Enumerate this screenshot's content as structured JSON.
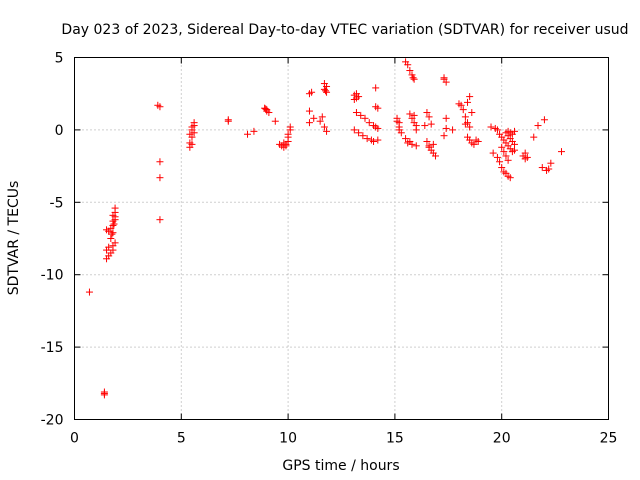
{
  "chart_data": {
    "type": "scatter",
    "title": "Day 023 of 2023, Sidereal Day-to-day VTEC variation (SDTVAR) for receiver usud",
    "xlabel": "GPS time / hours",
    "ylabel": "SDTVAR / TECUs",
    "xlim": [
      0,
      25
    ],
    "ylim": [
      -20,
      5
    ],
    "xticks": [
      0,
      5,
      10,
      15,
      20,
      25
    ],
    "yticks": [
      5,
      0,
      -5,
      -10,
      -15,
      -20
    ],
    "xtick_labels": [
      "0",
      "5",
      "10",
      "15",
      "20",
      "25"
    ],
    "ytick_labels": [
      "5",
      "0",
      "-5",
      "-10",
      "-15",
      "-20"
    ],
    "grid": true,
    "marker": "+",
    "color": "#ff0000",
    "series": [
      {
        "name": "SDTVAR",
        "points": [
          [
            0.7,
            -11.2
          ],
          [
            1.4,
            -18.1
          ],
          [
            1.4,
            -18.2
          ],
          [
            1.4,
            -18.3
          ],
          [
            1.5,
            -6.9
          ],
          [
            1.5,
            -8.3
          ],
          [
            1.5,
            -8.9
          ],
          [
            1.6,
            -8.7
          ],
          [
            1.6,
            -7.0
          ],
          [
            1.6,
            -8.1
          ],
          [
            1.7,
            -6.8
          ],
          [
            1.7,
            -7.5
          ],
          [
            1.7,
            -8.5
          ],
          [
            1.8,
            -5.9
          ],
          [
            1.8,
            -6.3
          ],
          [
            1.8,
            -6.6
          ],
          [
            1.8,
            -7.1
          ],
          [
            1.8,
            -8.0
          ],
          [
            1.8,
            -8.3
          ],
          [
            1.9,
            -5.4
          ],
          [
            1.9,
            -5.7
          ],
          [
            1.9,
            -6.0
          ],
          [
            1.9,
            -6.2
          ],
          [
            1.9,
            -7.8
          ],
          [
            1.85,
            -6.5
          ],
          [
            1.75,
            -7.2
          ],
          [
            3.9,
            1.7
          ],
          [
            4.0,
            1.6
          ],
          [
            4.0,
            -2.2
          ],
          [
            4.0,
            -3.3
          ],
          [
            4.0,
            -6.2
          ],
          [
            5.4,
            -0.9
          ],
          [
            5.4,
            -1.2
          ],
          [
            5.4,
            -0.3
          ],
          [
            5.5,
            -1.0
          ],
          [
            5.5,
            0.0
          ],
          [
            5.5,
            0.2
          ],
          [
            5.6,
            0.5
          ],
          [
            5.6,
            -0.2
          ],
          [
            5.5,
            -0.5
          ],
          [
            5.6,
            0.3
          ],
          [
            7.2,
            0.7
          ],
          [
            7.2,
            0.6
          ],
          [
            8.1,
            -0.3
          ],
          [
            8.4,
            -0.1
          ],
          [
            8.9,
            1.5
          ],
          [
            9.0,
            1.4
          ],
          [
            9.1,
            1.2
          ],
          [
            9.0,
            1.3
          ],
          [
            8.95,
            1.45
          ],
          [
            9.4,
            0.6
          ],
          [
            9.6,
            -1.0
          ],
          [
            9.7,
            -1.1
          ],
          [
            9.8,
            -1.2
          ],
          [
            9.9,
            -1.0
          ],
          [
            10.0,
            -0.8
          ],
          [
            10.0,
            -0.3
          ],
          [
            10.1,
            0.0
          ],
          [
            10.1,
            0.2
          ],
          [
            9.8,
            -0.9
          ],
          [
            9.9,
            -1.1
          ],
          [
            10.0,
            -0.5
          ],
          [
            11.0,
            2.5
          ],
          [
            11.0,
            1.3
          ],
          [
            11.0,
            0.5
          ],
          [
            11.2,
            0.8
          ],
          [
            11.1,
            2.6
          ],
          [
            11.5,
            0.6
          ],
          [
            11.6,
            0.9
          ],
          [
            11.7,
            3.2
          ],
          [
            11.7,
            2.8
          ],
          [
            11.8,
            2.6
          ],
          [
            11.8,
            3.0
          ],
          [
            11.7,
            0.2
          ],
          [
            11.8,
            -0.1
          ],
          [
            11.75,
            2.7
          ],
          [
            13.1,
            2.4
          ],
          [
            13.2,
            2.2
          ],
          [
            13.3,
            2.3
          ],
          [
            13.2,
            2.5
          ],
          [
            13.1,
            2.1
          ],
          [
            13.1,
            0.0
          ],
          [
            13.3,
            -0.2
          ],
          [
            13.5,
            -0.4
          ],
          [
            13.7,
            -0.6
          ],
          [
            13.9,
            -0.7
          ],
          [
            14.0,
            -0.8
          ],
          [
            13.2,
            1.2
          ],
          [
            13.4,
            1.0
          ],
          [
            13.6,
            0.8
          ],
          [
            13.8,
            0.5
          ],
          [
            14.0,
            0.3
          ],
          [
            14.2,
            0.1
          ],
          [
            14.1,
            1.6
          ],
          [
            14.2,
            1.5
          ],
          [
            14.1,
            2.9
          ],
          [
            14.2,
            -0.7
          ],
          [
            14.1,
            0.2
          ],
          [
            15.1,
            0.8
          ],
          [
            15.2,
            0.5
          ],
          [
            15.2,
            0.2
          ],
          [
            15.3,
            -0.2
          ],
          [
            15.1,
            0.6
          ],
          [
            15.2,
            0.0
          ],
          [
            15.5,
            4.7
          ],
          [
            15.6,
            4.5
          ],
          [
            15.7,
            4.1
          ],
          [
            15.8,
            3.8
          ],
          [
            15.9,
            3.5
          ],
          [
            15.85,
            3.6
          ],
          [
            15.5,
            -0.6
          ],
          [
            15.6,
            -0.9
          ],
          [
            15.8,
            -1.0
          ],
          [
            16.0,
            -1.1
          ],
          [
            15.7,
            -0.8
          ],
          [
            15.8,
            0.8
          ],
          [
            15.9,
            0.5
          ],
          [
            16.0,
            0.3
          ],
          [
            15.9,
            1.0
          ],
          [
            15.7,
            1.1
          ],
          [
            16.0,
            0.0
          ],
          [
            16.4,
            0.3
          ],
          [
            16.5,
            -0.8
          ],
          [
            16.6,
            -1.2
          ],
          [
            16.7,
            -1.4
          ],
          [
            16.8,
            -1.6
          ],
          [
            16.9,
            -1.8
          ],
          [
            16.5,
            1.2
          ],
          [
            16.6,
            0.9
          ],
          [
            16.7,
            0.4
          ],
          [
            16.8,
            -1.0
          ],
          [
            16.6,
            -1.1
          ],
          [
            17.3,
            3.5
          ],
          [
            17.4,
            3.3
          ],
          [
            17.3,
            3.6
          ],
          [
            17.4,
            0.8
          ],
          [
            17.3,
            -0.4
          ],
          [
            17.4,
            0.1
          ],
          [
            17.7,
            0.0
          ],
          [
            18.0,
            1.8
          ],
          [
            18.1,
            1.7
          ],
          [
            18.2,
            1.4
          ],
          [
            18.3,
            0.9
          ],
          [
            18.4,
            0.5
          ],
          [
            18.5,
            0.2
          ],
          [
            18.4,
            1.9
          ],
          [
            18.5,
            2.3
          ],
          [
            18.4,
            -0.5
          ],
          [
            18.5,
            -0.7
          ],
          [
            18.6,
            -0.9
          ],
          [
            18.7,
            -1.0
          ],
          [
            18.8,
            -0.7
          ],
          [
            18.9,
            -0.8
          ],
          [
            18.6,
            1.2
          ],
          [
            18.3,
            0.4
          ],
          [
            19.5,
            0.2
          ],
          [
            19.7,
            0.1
          ],
          [
            19.6,
            -1.6
          ],
          [
            19.8,
            -1.9
          ],
          [
            19.9,
            -2.2
          ],
          [
            20.0,
            -2.6
          ],
          [
            20.1,
            -2.9
          ],
          [
            20.2,
            -3.0
          ],
          [
            20.3,
            -3.2
          ],
          [
            20.4,
            -3.3
          ],
          [
            19.8,
            0.0
          ],
          [
            19.9,
            -0.3
          ],
          [
            20.0,
            -0.5
          ],
          [
            20.1,
            -0.7
          ],
          [
            20.2,
            -0.9
          ],
          [
            20.3,
            -1.1
          ],
          [
            20.4,
            -1.3
          ],
          [
            20.5,
            -1.5
          ],
          [
            20.0,
            -1.2
          ],
          [
            20.1,
            -1.5
          ],
          [
            20.2,
            -1.8
          ],
          [
            20.3,
            -2.1
          ],
          [
            20.2,
            -0.2
          ],
          [
            20.3,
            -0.4
          ],
          [
            20.4,
            -0.6
          ],
          [
            20.5,
            -0.8
          ],
          [
            20.6,
            -1.0
          ],
          [
            20.5,
            -0.3
          ],
          [
            20.6,
            -0.1
          ],
          [
            20.4,
            -0.2
          ],
          [
            20.3,
            -0.1
          ],
          [
            20.6,
            -1.4
          ],
          [
            21.0,
            -1.8
          ],
          [
            21.1,
            -2.0
          ],
          [
            21.2,
            -1.9
          ],
          [
            21.1,
            -1.6
          ],
          [
            21.5,
            -0.5
          ],
          [
            21.7,
            0.3
          ],
          [
            21.9,
            -2.6
          ],
          [
            22.0,
            0.7
          ],
          [
            22.1,
            -2.8
          ],
          [
            22.2,
            -2.7
          ],
          [
            22.3,
            -2.3
          ],
          [
            22.8,
            -1.5
          ]
        ]
      }
    ]
  }
}
